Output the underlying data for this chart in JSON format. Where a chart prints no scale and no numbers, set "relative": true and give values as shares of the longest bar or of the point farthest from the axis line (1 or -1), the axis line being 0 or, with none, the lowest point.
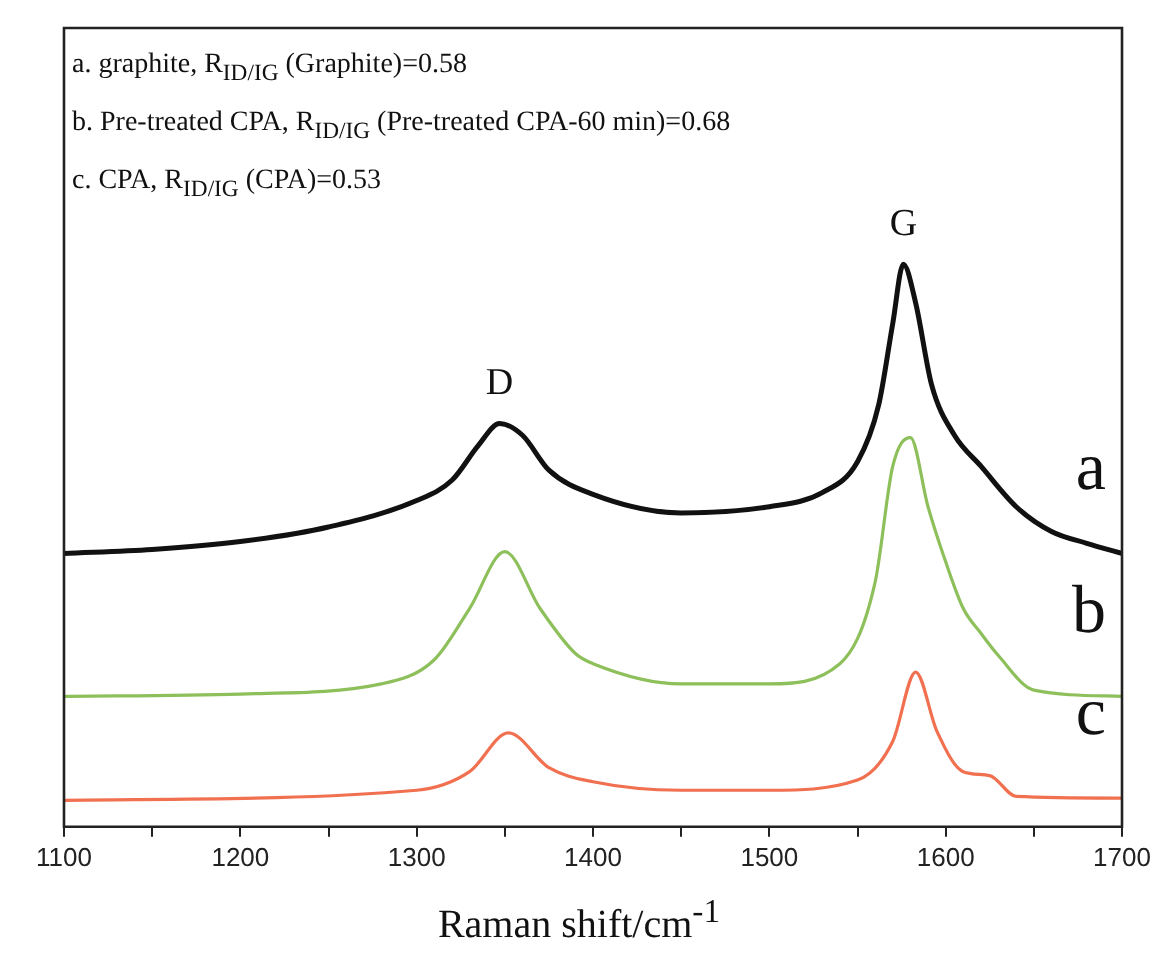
{
  "chart_data": {
    "type": "line",
    "relative": true,
    "xlabel": "Raman shift/cm$^{-1}$",
    "xlim": [
      1100,
      1700
    ],
    "xticks": [
      1100,
      {
        "value": 1150,
        "label": null
      },
      1200,
      {
        "value": 1250,
        "label": null
      },
      1300,
      {
        "value": 1350,
        "label": null
      },
      1400,
      {
        "value": 1450,
        "label": null
      },
      1500,
      {
        "value": 1550,
        "label": null
      },
      1600,
      {
        "value": 1650,
        "label": null
      },
      1700
    ],
    "grid": false,
    "legend": false,
    "marker": "none",
    "line_style": "solid",
    "annotations": [
      "a. graphite, R$_{ID/IG}$ (Graphite)=0.58",
      "b. Pre-treated CPA, R$_{ID/IG}$ (Pre-treated CPA-60 min)=0.68",
      "c. CPA, R$_{ID/IG}$ (CPA)=0.53",
      {
        "text": "D",
        "x": 1347,
        "y": 0.717
      },
      {
        "text": "G",
        "x": 1576,
        "y": 1
      }
    ],
    "series": [
      {
        "name": "a",
        "color": "#111111",
        "x": [
          1100,
          1150,
          1200,
          1250,
          1300,
          1320,
          1335,
          1347,
          1360,
          1375,
          1400,
          1450,
          1500,
          1530,
          1550,
          1562,
          1570,
          1576,
          1583,
          1592,
          1605,
          1620,
          1640,
          1660,
          1680,
          1700
        ],
        "values": [
          0.486,
          0.493,
          0.507,
          0.533,
          0.58,
          0.616,
          0.678,
          0.717,
          0.696,
          0.634,
          0.591,
          0.558,
          0.569,
          0.594,
          0.649,
          0.75,
          0.895,
          1,
          0.931,
          0.786,
          0.696,
          0.641,
          0.569,
          0.525,
          0.504,
          0.486
        ]
      },
      {
        "name": "b",
        "color": "#8dbf5a",
        "x": [
          1100,
          1200,
          1280,
          1310,
          1330,
          1350,
          1370,
          1390,
          1400,
          1450,
          1500,
          1540,
          1560,
          1570,
          1580,
          1590,
          1600,
          1610,
          1620,
          1630,
          1650,
          1700
        ],
        "values": [
          0.232,
          0.236,
          0.254,
          0.297,
          0.388,
          0.489,
          0.388,
          0.308,
          0.29,
          0.254,
          0.254,
          0.29,
          0.435,
          0.641,
          0.692,
          0.569,
          0.471,
          0.388,
          0.344,
          0.304,
          0.243,
          0.232
        ]
      },
      {
        "name": "c",
        "color": "#f07050",
        "x": [
          1100,
          1300,
          1330,
          1352,
          1375,
          1400,
          1450,
          1500,
          1550,
          1570,
          1583,
          1595,
          1610,
          1625,
          1640,
          1700
        ],
        "values": [
          0.047,
          0.065,
          0.098,
          0.167,
          0.105,
          0.08,
          0.065,
          0.065,
          0.083,
          0.152,
          0.275,
          0.17,
          0.098,
          0.091,
          0.054,
          0.051
        ]
      }
    ]
  }
}
